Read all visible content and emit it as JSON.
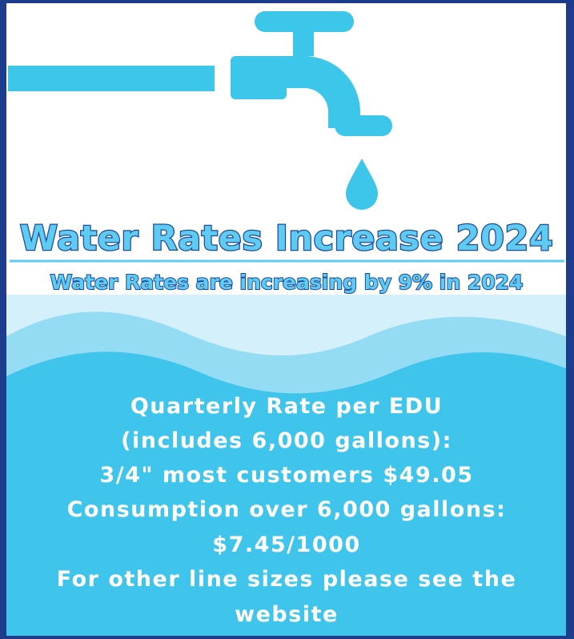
{
  "title": "Water Rates Increase 2024",
  "subtitle": "Water Rates are increasing by 9% in 2024",
  "body": [
    "Quarterly Rate per EDU",
    "(includes 6,000 gallons):",
    "3/4\" most customers $49.05",
    "Consumption over 6,000 gallons:",
    "$7.45/1000",
    "For other line sizes please see the",
    "website"
  ]
}
